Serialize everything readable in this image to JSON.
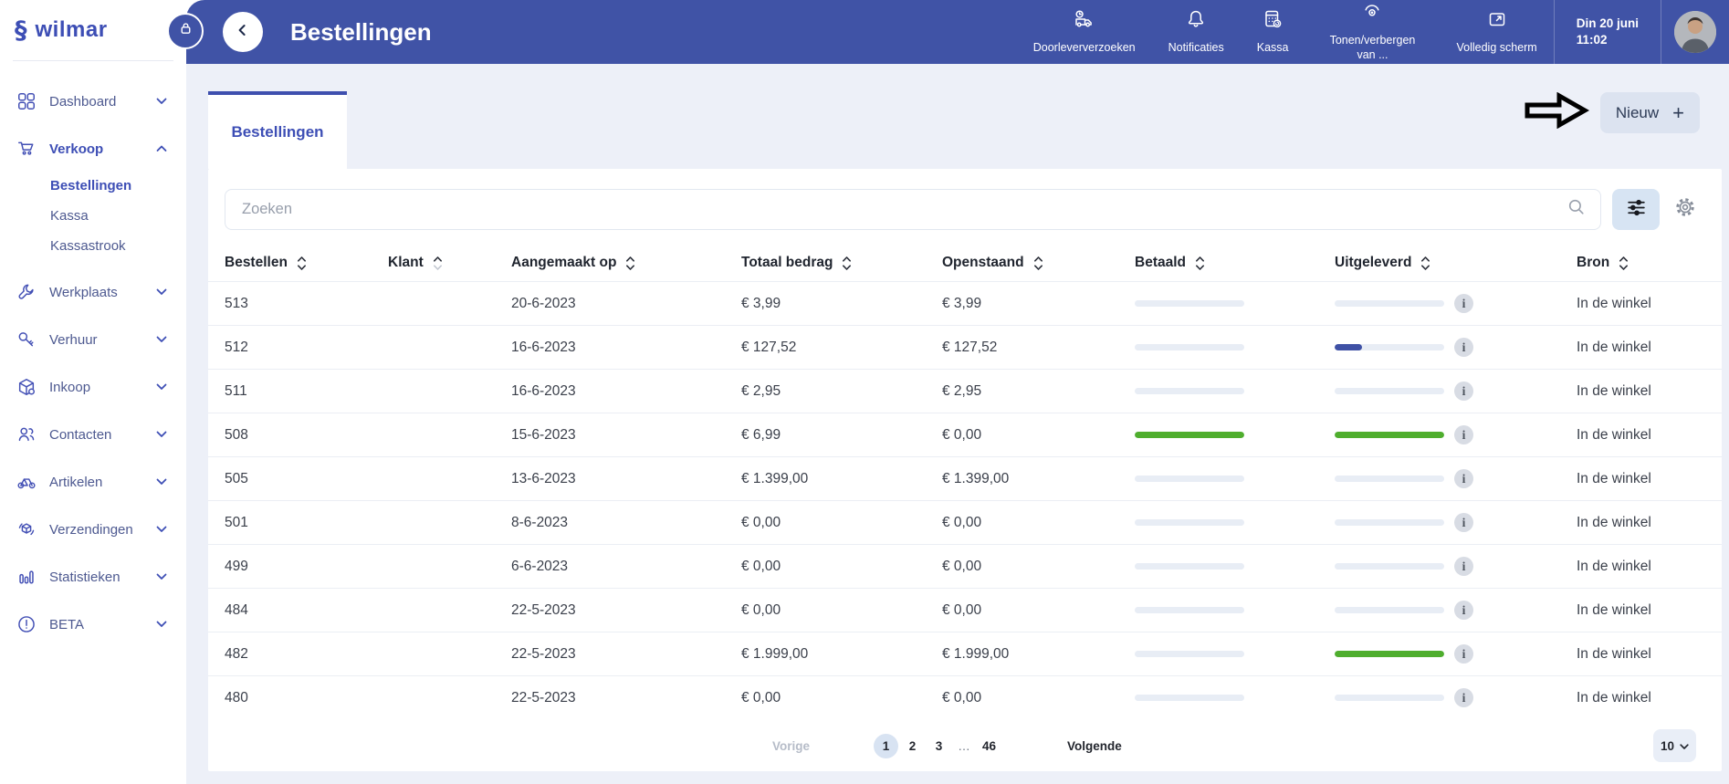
{
  "brand": {
    "name": "wilmar"
  },
  "colors": {
    "topbar": "#4053a6",
    "accent_blue": "#3d4eb5",
    "progress_blue": "#3f51a5",
    "progress_green": "#4fae2e",
    "page_background": "#edf0f8"
  },
  "icons": {
    "logo": "section-sign-s-glyph",
    "lock": "padlock",
    "back": "chevron-left",
    "doorleververzoeken": "delivery-truck-clock",
    "notificaties": "bell",
    "kassa": "cash-register",
    "tonen_verbergen": "eye",
    "volledig_scherm": "expand-screen",
    "search": "magnifier",
    "filter": "sliders",
    "settings": "gear",
    "sort": "up-down-chevrons",
    "info": "i",
    "new": "+",
    "annotation": "black-outline-arrow-right"
  },
  "sidebar": {
    "items": [
      {
        "label": "Dashboard"
      },
      {
        "label": "Verkoop"
      },
      {
        "label": "Werkplaats"
      },
      {
        "label": "Verhuur"
      },
      {
        "label": "Inkoop"
      },
      {
        "label": "Contacten"
      },
      {
        "label": "Artikelen"
      },
      {
        "label": "Verzendingen"
      },
      {
        "label": "Statistieken"
      },
      {
        "label": "BETA"
      }
    ],
    "verkoop_children": [
      {
        "label": "Bestellingen",
        "active": true
      },
      {
        "label": "Kassa",
        "active": false
      },
      {
        "label": "Kassastrook",
        "active": false
      }
    ]
  },
  "header": {
    "title": "Bestellingen",
    "actions": [
      {
        "label": "Doorleververzoeken"
      },
      {
        "label": "Notificaties"
      },
      {
        "label": "Kassa"
      },
      {
        "label": "Tonen/verbergen van ..."
      },
      {
        "label": "Volledig scherm"
      }
    ],
    "datetime_line1": "Din 20 juni",
    "datetime_line2": "11:02"
  },
  "tabs": {
    "active": "Bestellingen"
  },
  "toolbar": {
    "new_button_label": "Nieuw",
    "new_button_icon": "+"
  },
  "search": {
    "placeholder": "Zoeken"
  },
  "table": {
    "headers": [
      "Bestellen",
      "Klant",
      "Aangemaakt op",
      "Totaal bedrag",
      "Openstaand",
      "Betaald",
      "Uitgeleverd",
      "Bron"
    ],
    "rows": [
      {
        "bestellen": "513",
        "klant": "",
        "aangemaakt_op": "20-6-2023",
        "totaal_bedrag": "€ 3,99",
        "openstaand": "€ 3,99",
        "betaald_pct": 0,
        "betaald_color": "",
        "uitgeleverd_pct": 0,
        "uitgeleverd_color": "",
        "bron": "In de winkel"
      },
      {
        "bestellen": "512",
        "klant": "",
        "aangemaakt_op": "16-6-2023",
        "totaal_bedrag": "€ 127,52",
        "openstaand": "€ 127,52",
        "betaald_pct": 0,
        "betaald_color": "",
        "uitgeleverd_pct": 25,
        "uitgeleverd_color": "#3f51a5",
        "bron": "In de winkel"
      },
      {
        "bestellen": "511",
        "klant": "",
        "aangemaakt_op": "16-6-2023",
        "totaal_bedrag": "€ 2,95",
        "openstaand": "€ 2,95",
        "betaald_pct": 0,
        "betaald_color": "",
        "uitgeleverd_pct": 0,
        "uitgeleverd_color": "",
        "bron": "In de winkel"
      },
      {
        "bestellen": "508",
        "klant": "",
        "aangemaakt_op": "15-6-2023",
        "totaal_bedrag": "€ 6,99",
        "openstaand": "€ 0,00",
        "betaald_pct": 100,
        "betaald_color": "#4fae2e",
        "uitgeleverd_pct": 100,
        "uitgeleverd_color": "#4fae2e",
        "bron": "In de winkel"
      },
      {
        "bestellen": "505",
        "klant": "",
        "aangemaakt_op": "13-6-2023",
        "totaal_bedrag": "€ 1.399,00",
        "openstaand": "€ 1.399,00",
        "betaald_pct": 0,
        "betaald_color": "",
        "uitgeleverd_pct": 0,
        "uitgeleverd_color": "",
        "bron": "In de winkel"
      },
      {
        "bestellen": "501",
        "klant": "",
        "aangemaakt_op": "8-6-2023",
        "totaal_bedrag": "€ 0,00",
        "openstaand": "€ 0,00",
        "betaald_pct": 0,
        "betaald_color": "",
        "uitgeleverd_pct": 0,
        "uitgeleverd_color": "",
        "bron": "In de winkel"
      },
      {
        "bestellen": "499",
        "klant": "",
        "aangemaakt_op": "6-6-2023",
        "totaal_bedrag": "€ 0,00",
        "openstaand": "€ 0,00",
        "betaald_pct": 0,
        "betaald_color": "",
        "uitgeleverd_pct": 0,
        "uitgeleverd_color": "",
        "bron": "In de winkel"
      },
      {
        "bestellen": "484",
        "klant": "",
        "aangemaakt_op": "22-5-2023",
        "totaal_bedrag": "€ 0,00",
        "openstaand": "€ 0,00",
        "betaald_pct": 0,
        "betaald_color": "",
        "uitgeleverd_pct": 0,
        "uitgeleverd_color": "",
        "bron": "In de winkel"
      },
      {
        "bestellen": "482",
        "klant": "",
        "aangemaakt_op": "22-5-2023",
        "totaal_bedrag": "€ 1.999,00",
        "openstaand": "€ 1.999,00",
        "betaald_pct": 0,
        "betaald_color": "",
        "uitgeleverd_pct": 100,
        "uitgeleverd_color": "#4fae2e",
        "bron": "In de winkel"
      },
      {
        "bestellen": "480",
        "klant": "",
        "aangemaakt_op": "22-5-2023",
        "totaal_bedrag": "€ 0,00",
        "openstaand": "€ 0,00",
        "betaald_pct": 0,
        "betaald_color": "",
        "uitgeleverd_pct": 0,
        "uitgeleverd_color": "",
        "bron": "In de winkel"
      }
    ]
  },
  "pagination": {
    "previous": "Vorige",
    "pages": [
      "1",
      "2",
      "3",
      "…",
      "46"
    ],
    "active_page": "1",
    "next": "Volgende",
    "page_size": "10"
  }
}
